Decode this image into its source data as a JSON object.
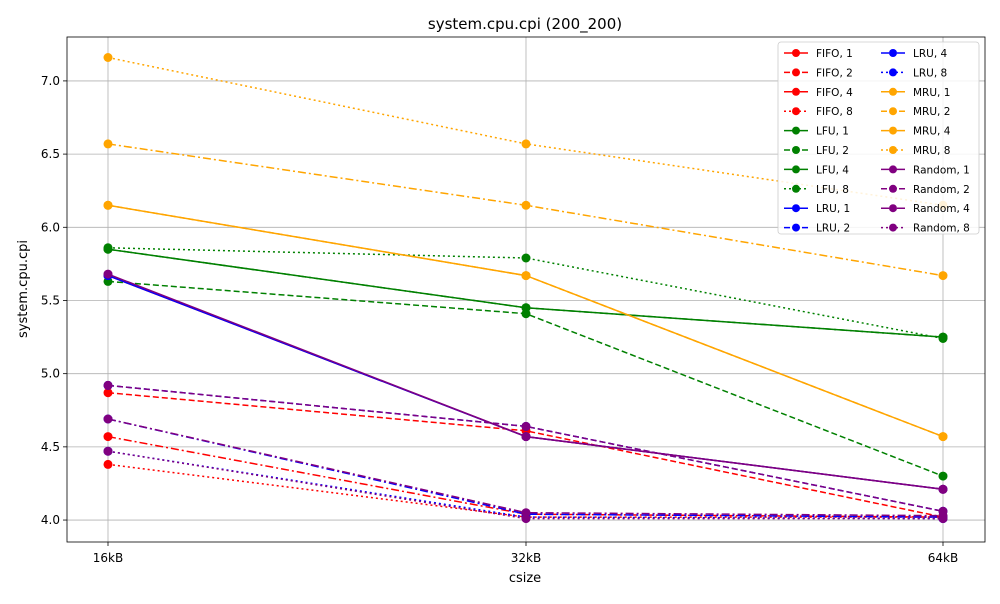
{
  "chart_data": {
    "type": "line",
    "title": "system.cpu.cpi (200_200)",
    "xlabel": "csize",
    "ylabel": "system.cpu.cpi",
    "categories": [
      "16kB",
      "32kB",
      "64kB"
    ],
    "ylim": [
      3.85,
      7.3
    ],
    "yticks": [
      "4.0",
      "4.5",
      "5.0",
      "5.5",
      "6.0",
      "6.5",
      "7.0"
    ],
    "grid": true,
    "legend": {
      "placement": "top-right",
      "columns": 2
    },
    "colors": {
      "FIFO": "#ff0000",
      "LFU": "#008000",
      "LRU": "#0000ff",
      "MRU": "#ffa500",
      "Random": "#800080"
    },
    "styles": {
      "1": "solid",
      "2": "dashed",
      "4": "dashdot",
      "8": "dotted"
    },
    "series": [
      {
        "name": "FIFO, 1",
        "policy": "FIFO",
        "assoc": "1",
        "values": [
          5.67,
          4.57,
          4.21
        ]
      },
      {
        "name": "FIFO, 2",
        "policy": "FIFO",
        "assoc": "2",
        "values": [
          4.87,
          4.61,
          4.02
        ]
      },
      {
        "name": "FIFO, 4",
        "policy": "FIFO",
        "assoc": "4",
        "values": [
          4.57,
          4.04,
          4.02
        ]
      },
      {
        "name": "FIFO, 8",
        "policy": "FIFO",
        "assoc": "8",
        "values": [
          4.38,
          4.02,
          4.02
        ]
      },
      {
        "name": "LFU, 1",
        "policy": "LFU",
        "assoc": "1",
        "values": [
          5.85,
          5.45,
          5.25
        ]
      },
      {
        "name": "LFU, 2",
        "policy": "LFU",
        "assoc": "2",
        "values": [
          5.63,
          5.41,
          4.3
        ]
      },
      {
        "name": "LFU, 4",
        "policy": "LFU",
        "assoc": "4",
        "values": [
          5.85,
          5.45,
          5.25
        ]
      },
      {
        "name": "LFU, 8",
        "policy": "LFU",
        "assoc": "8",
        "values": [
          5.86,
          5.79,
          5.24
        ]
      },
      {
        "name": "LRU, 1",
        "policy": "LRU",
        "assoc": "1",
        "values": [
          5.67,
          4.57,
          4.21
        ]
      },
      {
        "name": "LRU, 2",
        "policy": "LRU",
        "assoc": "2",
        "values": [
          4.92,
          4.64,
          4.06
        ]
      },
      {
        "name": "LRU, 4",
        "policy": "LRU",
        "assoc": "4",
        "values": [
          4.69,
          4.04,
          4.02
        ]
      },
      {
        "name": "LRU, 8",
        "policy": "LRU",
        "assoc": "8",
        "values": [
          4.47,
          4.02,
          4.01
        ]
      },
      {
        "name": "MRU, 1",
        "policy": "MRU",
        "assoc": "1",
        "values": [
          6.15,
          5.67,
          4.57
        ]
      },
      {
        "name": "MRU, 2",
        "policy": "MRU",
        "assoc": "2",
        "values": [
          6.15,
          5.67,
          4.57
        ]
      },
      {
        "name": "MRU, 4",
        "policy": "MRU",
        "assoc": "4",
        "values": [
          6.57,
          6.15,
          5.67
        ]
      },
      {
        "name": "MRU, 8",
        "policy": "MRU",
        "assoc": "8",
        "values": [
          7.16,
          6.57,
          6.15
        ]
      },
      {
        "name": "Random, 1",
        "policy": "Random",
        "assoc": "1",
        "values": [
          5.68,
          4.57,
          4.21
        ]
      },
      {
        "name": "Random, 2",
        "policy": "Random",
        "assoc": "2",
        "values": [
          4.92,
          4.64,
          4.06
        ]
      },
      {
        "name": "Random, 4",
        "policy": "Random",
        "assoc": "4",
        "values": [
          4.69,
          4.05,
          4.03
        ]
      },
      {
        "name": "Random, 8",
        "policy": "Random",
        "assoc": "8",
        "values": [
          4.47,
          4.01,
          4.01
        ]
      }
    ]
  }
}
